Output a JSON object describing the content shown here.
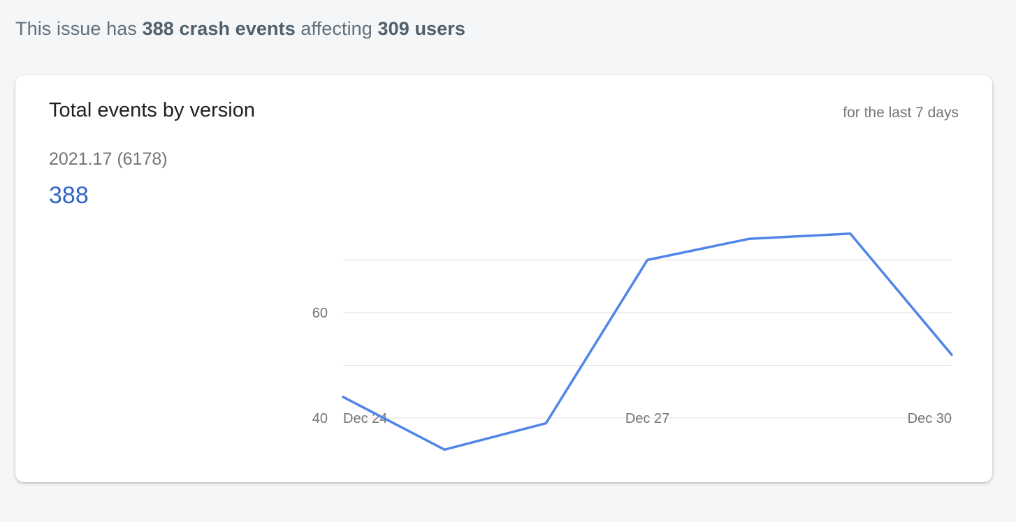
{
  "summary": {
    "prefix": "This issue has ",
    "events": "388 crash events",
    "middle": " affecting ",
    "users": "309 users"
  },
  "card": {
    "title": "Total events by version",
    "period": "for the last 7 days",
    "version": "2021.17 (6178)",
    "count": "388"
  },
  "colors": {
    "line": "#5285e8",
    "count": "#2f64c6",
    "grid": "#e0e0e0"
  },
  "chart_data": {
    "type": "line",
    "x": [
      "Dec 24",
      "Dec 25",
      "Dec 26",
      "Dec 27",
      "Dec 28",
      "Dec 29",
      "Dec 30"
    ],
    "x_tick_labels": [
      "Dec 24",
      "Dec 27",
      "Dec 30"
    ],
    "series": [
      {
        "values": [
          44,
          34,
          39,
          70,
          74,
          75,
          52
        ]
      }
    ],
    "y_tick_labels": [
      40,
      60
    ],
    "gridlines": [
      40,
      50,
      60,
      70
    ],
    "ylim": [
      30,
      80
    ],
    "grid": true
  }
}
